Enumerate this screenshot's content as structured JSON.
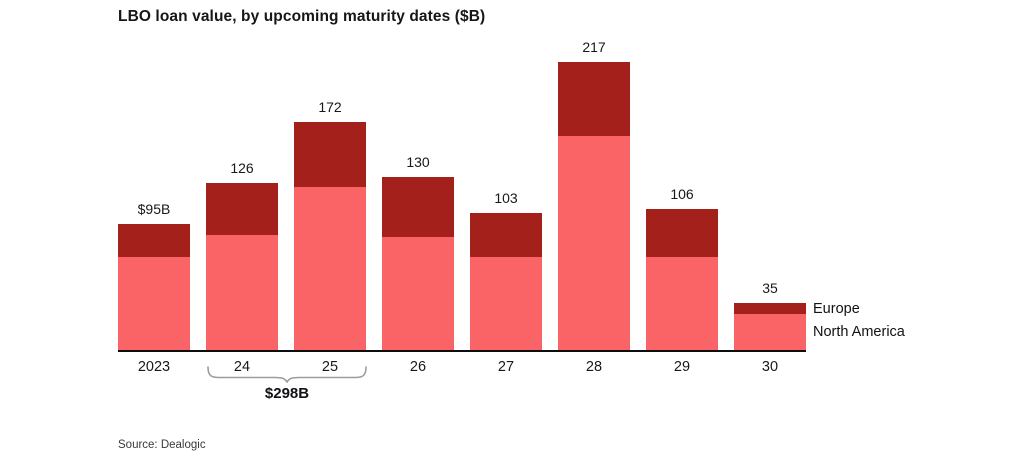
{
  "chart_data": {
    "type": "bar",
    "stacked": true,
    "title": "LBO loan value, by upcoming maturity dates ($B)",
    "categories": [
      "2023",
      "24",
      "25",
      "26",
      "27",
      "28",
      "29",
      "30"
    ],
    "series": [
      {
        "name": "North America",
        "color": "#FB6466",
        "values": [
          70,
          87,
          123,
          85,
          70,
          161,
          70,
          27
        ]
      },
      {
        "name": "Europe",
        "color": "#A4201A",
        "values": [
          25,
          39,
          49,
          45,
          33,
          56,
          36,
          8
        ]
      }
    ],
    "totals": [
      95,
      126,
      172,
      130,
      103,
      217,
      106,
      35
    ],
    "total_labels": [
      "$95B",
      "126",
      "172",
      "130",
      "103",
      "217",
      "106",
      "35"
    ],
    "annotation": {
      "label": "$298B",
      "categories": [
        "24",
        "25"
      ],
      "sum": 298
    },
    "legend": {
      "position": "right-of-last-bar",
      "entries": [
        "Europe",
        "North America"
      ]
    },
    "xlabel": "",
    "ylabel": "",
    "ylim": [
      0,
      230
    ],
    "grid": false,
    "source": "Source: Dealogic"
  },
  "colors": {
    "north_america": "#FB6466",
    "europe": "#A4201A",
    "axis": "#0d0d0d",
    "bracket": "#9c9c9c",
    "text": "#16181c"
  }
}
